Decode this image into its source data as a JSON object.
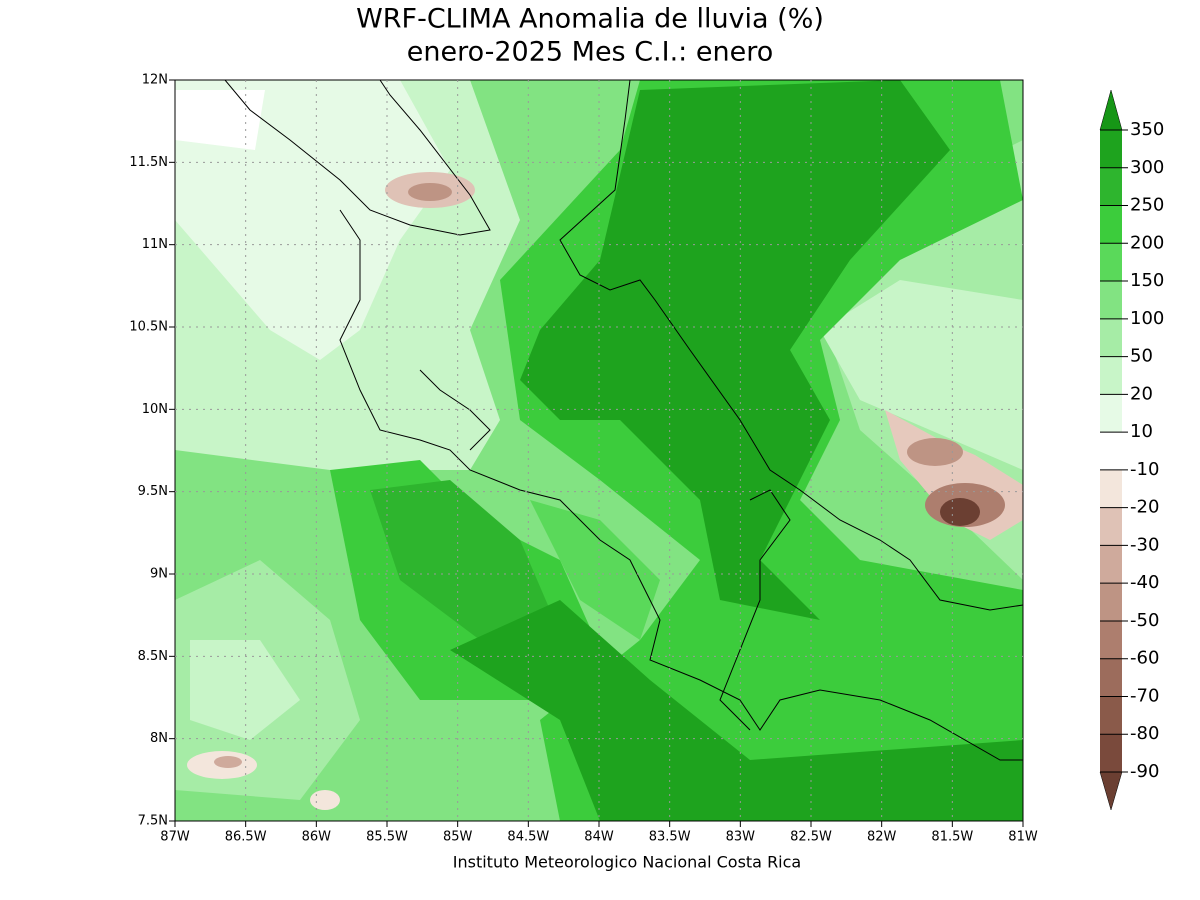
{
  "title": "WRF-CLIMA Anomalia de lluvia (%)",
  "subtitle": "enero-2025 Mes C.I.: enero",
  "credit": "Instituto Meteorologico Nacional Costa Rica",
  "map": {
    "xlim": [
      -87,
      -81
    ],
    "ylim": [
      7.5,
      12
    ],
    "xticks": [
      {
        "value": -87,
        "label": "87W"
      },
      {
        "value": -86.5,
        "label": "86.5W"
      },
      {
        "value": -86,
        "label": "86W"
      },
      {
        "value": -85.5,
        "label": "85.5W"
      },
      {
        "value": -85,
        "label": "85W"
      },
      {
        "value": -84.5,
        "label": "84.5W"
      },
      {
        "value": -84,
        "label": "84W"
      },
      {
        "value": -83.5,
        "label": "83.5W"
      },
      {
        "value": -83,
        "label": "83W"
      },
      {
        "value": -82.5,
        "label": "82.5W"
      },
      {
        "value": -82,
        "label": "82W"
      },
      {
        "value": -81.5,
        "label": "81.5W"
      },
      {
        "value": -81,
        "label": "81W"
      }
    ],
    "yticks": [
      {
        "value": 7.5,
        "label": "7.5N"
      },
      {
        "value": 8,
        "label": "8N"
      },
      {
        "value": 8.5,
        "label": "8.5N"
      },
      {
        "value": 9,
        "label": "9N"
      },
      {
        "value": 9.5,
        "label": "9.5N"
      },
      {
        "value": 10,
        "label": "10N"
      },
      {
        "value": 10.5,
        "label": "10.5N"
      },
      {
        "value": 11,
        "label": "11N"
      },
      {
        "value": 11.5,
        "label": "11.5N"
      },
      {
        "value": 12,
        "label": "12N"
      }
    ],
    "grid": true
  },
  "colorbar": {
    "levels": [
      -90,
      -80,
      -70,
      -60,
      -50,
      -40,
      -30,
      -20,
      -10,
      10,
      20,
      50,
      100,
      150,
      200,
      250,
      300,
      350
    ],
    "colors": [
      "#6b3f32",
      "#7a4a3c",
      "#8a5a4a",
      "#9c6c5c",
      "#ad7e6e",
      "#be9484",
      "#cfaa9c",
      "#dfc2b6",
      "#f3e6dc",
      "#ffffff",
      "#e6fae6",
      "#c8f5c8",
      "#a6eca6",
      "#82e382",
      "#5ad95a",
      "#3ccc3c",
      "#2eb52e",
      "#1ea31e",
      "#169616"
    ]
  }
}
